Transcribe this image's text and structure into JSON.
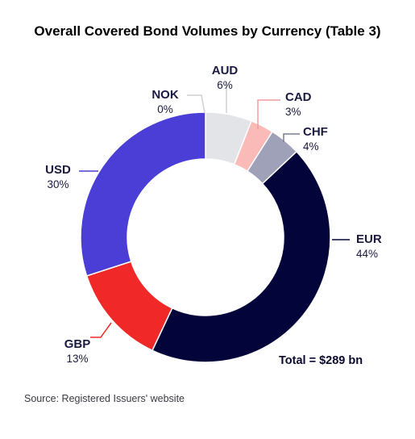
{
  "chart_data": {
    "type": "pie",
    "title": "Overall Covered Bond Volumes by Currency (Table 3)",
    "categories": [
      "AUD",
      "CAD",
      "CHF",
      "EUR",
      "GBP",
      "USD",
      "NOK"
    ],
    "values": [
      6,
      3,
      4,
      44,
      13,
      30,
      0
    ],
    "value_labels": [
      "6%",
      "3%",
      "4%",
      "44%",
      "13%",
      "30%",
      "0%"
    ],
    "colors": [
      "#e2e4e8",
      "#f9bab8",
      "#9fa1b8",
      "#03053a",
      "#f02828",
      "#4a3ed6",
      "#d0d0d6"
    ],
    "leader_colors": [
      "#d0d0d6",
      "#f59c9c",
      "#7c7e96",
      "#03053a",
      "#f02828",
      "#4a3ed6",
      "#d0d0d6"
    ],
    "donut": true,
    "total_label": "Total = $289 bn"
  },
  "source_text": "Source: Registered Issuers' website"
}
